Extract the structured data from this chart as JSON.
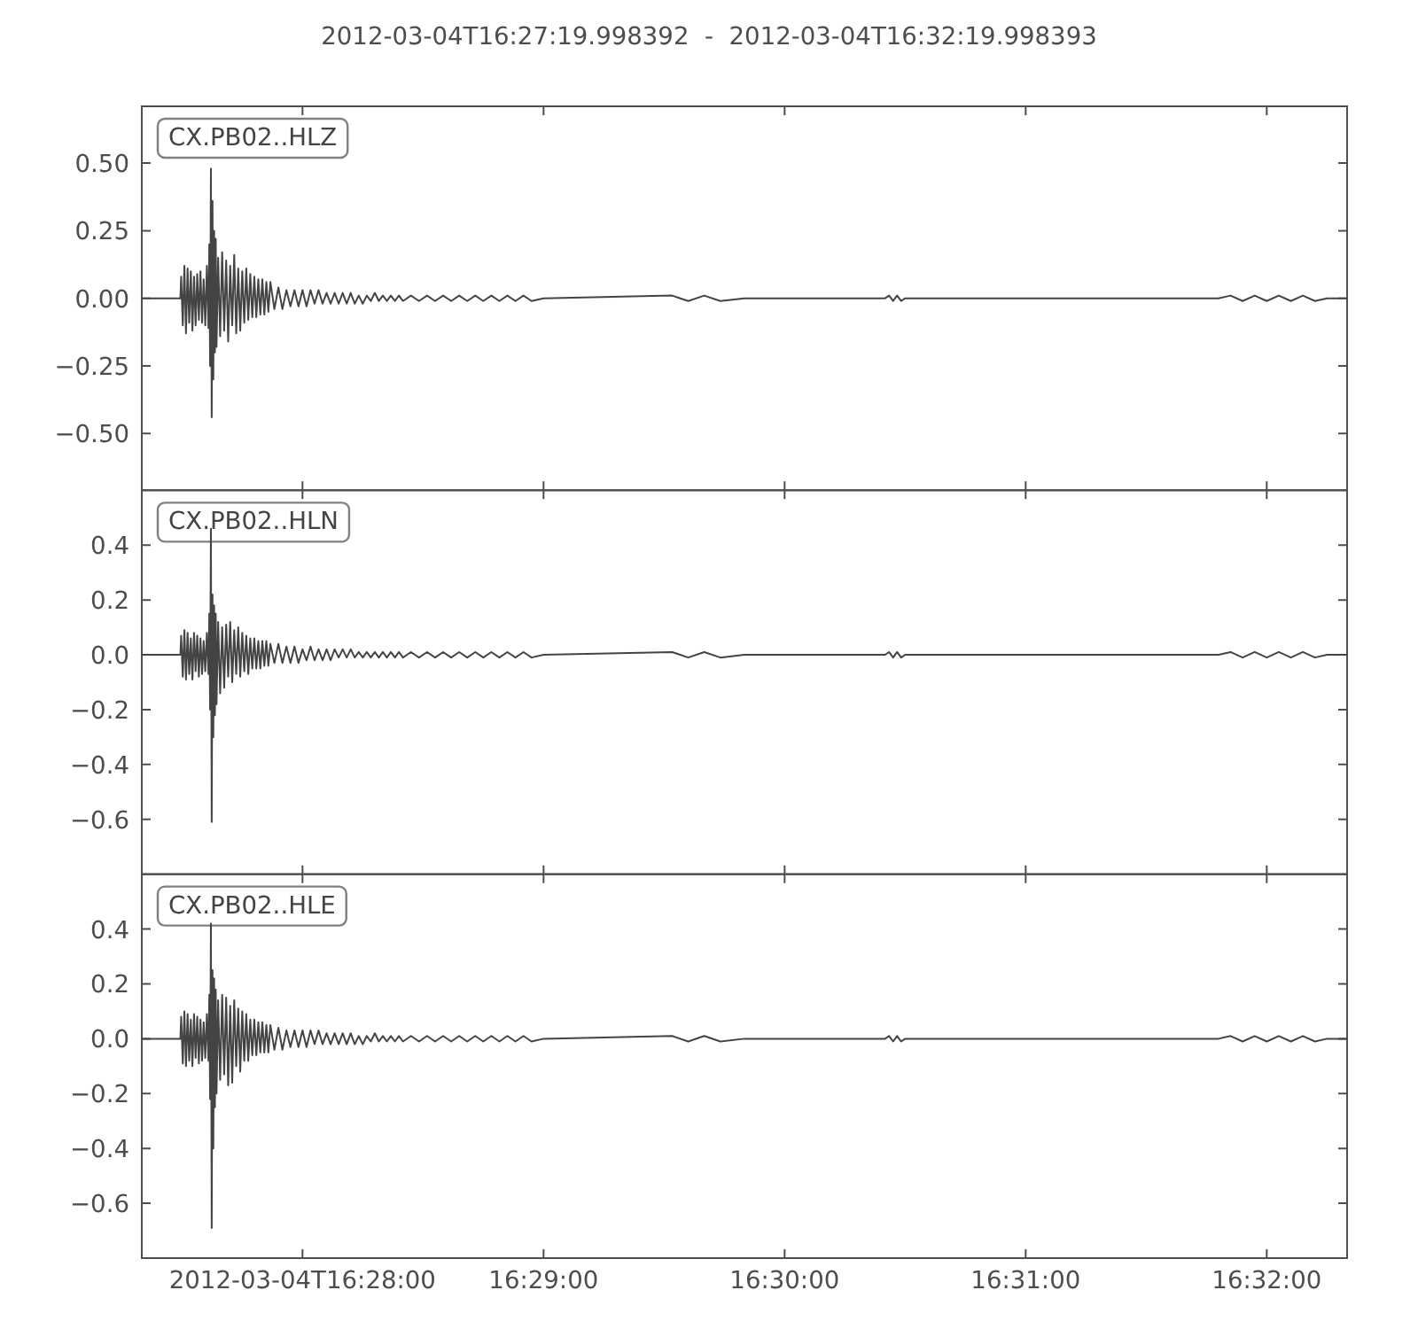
{
  "chart_data": [
    {
      "type": "line",
      "title": "2012-03-04T16:27:19.998392  -  2012-03-04T16:32:19.998393",
      "legend": "top left",
      "tick_labels": "y",
      "xlim": [
        "2012-03-04T16:27:20",
        "2012-03-04T16:32:20"
      ],
      "xticks": [
        {
          "value": "2012-03-04T16:28:00",
          "label": null
        },
        {
          "value": "2012-03-04T16:29:00",
          "label": null
        },
        {
          "value": "2012-03-04T16:30:00",
          "label": null
        },
        {
          "value": "2012-03-04T16:31:00",
          "label": null
        },
        {
          "value": "2012-03-04T16:32:00",
          "label": null
        }
      ],
      "ylim": [
        -0.71,
        0.71
      ],
      "yticks": [
        {
          "value": -0.5,
          "label": "−0.50"
        },
        {
          "value": -0.25,
          "label": "−0.25"
        },
        {
          "value": 0,
          "label": "0.00"
        },
        {
          "value": 0.25,
          "label": "0.25"
        },
        {
          "value": 0.5,
          "label": "0.50"
        }
      ],
      "x": [
        "2012-03-04T16:27:20",
        "2012-03-04T16:27:29.6",
        "2012-03-04T16:27:29.8",
        "2012-03-04T16:27:30.2",
        "2012-03-04T16:27:30.6",
        "2012-03-04T16:27:31",
        "2012-03-04T16:27:31.4",
        "2012-03-04T16:27:31.8",
        "2012-03-04T16:27:32.2",
        "2012-03-04T16:27:32.6",
        "2012-03-04T16:27:33",
        "2012-03-04T16:27:33.4",
        "2012-03-04T16:27:33.8",
        "2012-03-04T16:27:34.2",
        "2012-03-04T16:27:34.6",
        "2012-03-04T16:27:35",
        "2012-03-04T16:27:35.4",
        "2012-03-04T16:27:35.8",
        "2012-03-04T16:27:36.2",
        "2012-03-04T16:27:36.6",
        "2012-03-04T16:27:36.8",
        "2012-03-04T16:27:37",
        "2012-03-04T16:27:37.2",
        "2012-03-04T16:27:37.4",
        "2012-03-04T16:27:37.6",
        "2012-03-04T16:27:37.8",
        "2012-03-04T16:27:38",
        "2012-03-04T16:27:38.2",
        "2012-03-04T16:27:38.4",
        "2012-03-04T16:27:38.6",
        "2012-03-04T16:27:39",
        "2012-03-04T16:27:39.5",
        "2012-03-04T16:27:40",
        "2012-03-04T16:27:40.5",
        "2012-03-04T16:27:41",
        "2012-03-04T16:27:41.5",
        "2012-03-04T16:27:42",
        "2012-03-04T16:27:42.5",
        "2012-03-04T16:27:43",
        "2012-03-04T16:27:43.5",
        "2012-03-04T16:27:44",
        "2012-03-04T16:27:44.5",
        "2012-03-04T16:27:45",
        "2012-03-04T16:27:45.5",
        "2012-03-04T16:27:46",
        "2012-03-04T16:27:46.5",
        "2012-03-04T16:27:47",
        "2012-03-04T16:27:47.5",
        "2012-03-04T16:27:48",
        "2012-03-04T16:27:48.5",
        "2012-03-04T16:27:49",
        "2012-03-04T16:27:49.5",
        "2012-03-04T16:27:50",
        "2012-03-04T16:27:50.5",
        "2012-03-04T16:27:51",
        "2012-03-04T16:27:51.5",
        "2012-03-04T16:27:52",
        "2012-03-04T16:27:53",
        "2012-03-04T16:27:54",
        "2012-03-04T16:27:55",
        "2012-03-04T16:27:56",
        "2012-03-04T16:27:57",
        "2012-03-04T16:27:58",
        "2012-03-04T16:27:59",
        "2012-03-04T16:28:00",
        "2012-03-04T16:28:01",
        "2012-03-04T16:28:02",
        "2012-03-04T16:28:03",
        "2012-03-04T16:28:04",
        "2012-03-04T16:28:05",
        "2012-03-04T16:28:06",
        "2012-03-04T16:28:07",
        "2012-03-04T16:28:08",
        "2012-03-04T16:28:09",
        "2012-03-04T16:28:10",
        "2012-03-04T16:28:11",
        "2012-03-04T16:28:12",
        "2012-03-04T16:28:13",
        "2012-03-04T16:28:14",
        "2012-03-04T16:28:15",
        "2012-03-04T16:28:16",
        "2012-03-04T16:28:17",
        "2012-03-04T16:28:18",
        "2012-03-04T16:28:19",
        "2012-03-04T16:28:20",
        "2012-03-04T16:28:21",
        "2012-03-04T16:28:22",
        "2012-03-04T16:28:23",
        "2012-03-04T16:28:24",
        "2012-03-04T16:28:25",
        "2012-03-04T16:28:27",
        "2012-03-04T16:28:29",
        "2012-03-04T16:28:31",
        "2012-03-04T16:28:33",
        "2012-03-04T16:28:35",
        "2012-03-04T16:28:37",
        "2012-03-04T16:28:39",
        "2012-03-04T16:28:41",
        "2012-03-04T16:28:43",
        "2012-03-04T16:28:45",
        "2012-03-04T16:28:47",
        "2012-03-04T16:28:49",
        "2012-03-04T16:28:51",
        "2012-03-04T16:28:53",
        "2012-03-04T16:28:55",
        "2012-03-04T16:28:57",
        "2012-03-04T16:29:00",
        "2012-03-04T16:29:32",
        "2012-03-04T16:29:36",
        "2012-03-04T16:29:40",
        "2012-03-04T16:29:44",
        "2012-03-04T16:29:50",
        "2012-03-04T16:30:25",
        "2012-03-04T16:30:26",
        "2012-03-04T16:30:27",
        "2012-03-04T16:30:28",
        "2012-03-04T16:30:29",
        "2012-03-04T16:30:30",
        "2012-03-04T16:31:48",
        "2012-03-04T16:31:51",
        "2012-03-04T16:31:54",
        "2012-03-04T16:31:57",
        "2012-03-04T16:32:00",
        "2012-03-04T16:32:03",
        "2012-03-04T16:32:06",
        "2012-03-04T16:32:09",
        "2012-03-04T16:32:12",
        "2012-03-04T16:32:15",
        "2012-03-04T16:32:20"
      ],
      "series": [
        {
          "name": "CX.PB02..HLZ",
          "color": "#444444",
          "values": [
            0,
            0,
            0.08,
            -0.1,
            0.12,
            -0.13,
            0.11,
            -0.09,
            0.1,
            -0.12,
            0.08,
            -0.1,
            0.09,
            -0.08,
            0.1,
            -0.09,
            0.07,
            -0.1,
            0.12,
            -0.11,
            0.2,
            -0.25,
            0.48,
            -0.44,
            0.36,
            -0.3,
            0.25,
            -0.2,
            0.22,
            -0.18,
            0.15,
            -0.14,
            0.17,
            -0.12,
            0.14,
            -0.16,
            0.12,
            -0.1,
            0.16,
            -0.13,
            0.11,
            -0.12,
            0.1,
            -0.09,
            0.11,
            -0.08,
            0.09,
            -0.07,
            0.08,
            -0.07,
            0.07,
            -0.06,
            0.07,
            -0.06,
            0.06,
            -0.05,
            0.06,
            -0.04,
            0.04,
            -0.04,
            0.03,
            -0.03,
            0.03,
            -0.03,
            0.03,
            -0.03,
            0.03,
            -0.02,
            0.03,
            -0.02,
            0.02,
            -0.02,
            0.02,
            -0.02,
            0.02,
            -0.02,
            0.02,
            -0.02,
            0.01,
            -0.02,
            0.01,
            -0.01,
            0.02,
            -0.01,
            0.01,
            -0.01,
            0.01,
            -0.01,
            0.01,
            -0.01,
            0.01,
            -0.01,
            0.01,
            -0.01,
            0.01,
            -0.01,
            0.01,
            -0.01,
            0.01,
            -0.01,
            0.01,
            -0.01,
            0.01,
            -0.01,
            0.01,
            -0.01,
            0,
            0.01,
            -0.01,
            0.01,
            -0.01,
            0,
            0,
            0.01,
            -0.01,
            0.01,
            -0.01,
            0,
            0,
            0.01,
            -0.01,
            0.01,
            -0.01,
            0.01,
            -0.01,
            0.01,
            -0.01,
            0,
            0
          ]
        }
      ]
    },
    {
      "type": "line",
      "legend": "top left",
      "tick_labels": "y",
      "xlim": [
        "2012-03-04T16:27:20",
        "2012-03-04T16:32:20"
      ],
      "xticks": [
        {
          "value": "2012-03-04T16:28:00",
          "label": null
        },
        {
          "value": "2012-03-04T16:29:00",
          "label": null
        },
        {
          "value": "2012-03-04T16:30:00",
          "label": null
        },
        {
          "value": "2012-03-04T16:31:00",
          "label": null
        },
        {
          "value": "2012-03-04T16:32:00",
          "label": null
        }
      ],
      "ylim": [
        -0.8,
        0.6
      ],
      "yticks": [
        {
          "value": -0.6,
          "label": "−0.6"
        },
        {
          "value": -0.4,
          "label": "−0.4"
        },
        {
          "value": -0.2,
          "label": "−0.2"
        },
        {
          "value": 0,
          "label": "0.0"
        },
        {
          "value": 0.2,
          "label": "0.2"
        },
        {
          "value": 0.4,
          "label": "0.4"
        }
      ],
      "x": [
        "2012-03-04T16:27:20",
        "2012-03-04T16:27:29.6",
        "2012-03-04T16:27:29.8",
        "2012-03-04T16:27:30.2",
        "2012-03-04T16:27:30.6",
        "2012-03-04T16:27:31",
        "2012-03-04T16:27:31.4",
        "2012-03-04T16:27:31.8",
        "2012-03-04T16:27:32.2",
        "2012-03-04T16:27:32.6",
        "2012-03-04T16:27:33",
        "2012-03-04T16:27:33.4",
        "2012-03-04T16:27:33.8",
        "2012-03-04T16:27:34.2",
        "2012-03-04T16:27:34.6",
        "2012-03-04T16:27:35",
        "2012-03-04T16:27:35.4",
        "2012-03-04T16:27:35.8",
        "2012-03-04T16:27:36.2",
        "2012-03-04T16:27:36.6",
        "2012-03-04T16:27:36.8",
        "2012-03-04T16:27:37",
        "2012-03-04T16:27:37.2",
        "2012-03-04T16:27:37.4",
        "2012-03-04T16:27:37.6",
        "2012-03-04T16:27:37.8",
        "2012-03-04T16:27:38",
        "2012-03-04T16:27:38.2",
        "2012-03-04T16:27:38.4",
        "2012-03-04T16:27:38.6",
        "2012-03-04T16:27:39",
        "2012-03-04T16:27:39.5",
        "2012-03-04T16:27:40",
        "2012-03-04T16:27:40.5",
        "2012-03-04T16:27:41",
        "2012-03-04T16:27:41.5",
        "2012-03-04T16:27:42",
        "2012-03-04T16:27:42.5",
        "2012-03-04T16:27:43",
        "2012-03-04T16:27:43.5",
        "2012-03-04T16:27:44",
        "2012-03-04T16:27:44.5",
        "2012-03-04T16:27:45",
        "2012-03-04T16:27:45.5",
        "2012-03-04T16:27:46",
        "2012-03-04T16:27:46.5",
        "2012-03-04T16:27:47",
        "2012-03-04T16:27:47.5",
        "2012-03-04T16:27:48",
        "2012-03-04T16:27:48.5",
        "2012-03-04T16:27:49",
        "2012-03-04T16:27:49.5",
        "2012-03-04T16:27:50",
        "2012-03-04T16:27:50.5",
        "2012-03-04T16:27:51",
        "2012-03-04T16:27:51.5",
        "2012-03-04T16:27:52",
        "2012-03-04T16:27:53",
        "2012-03-04T16:27:54",
        "2012-03-04T16:27:55",
        "2012-03-04T16:27:56",
        "2012-03-04T16:27:57",
        "2012-03-04T16:27:58",
        "2012-03-04T16:27:59",
        "2012-03-04T16:28:00",
        "2012-03-04T16:28:01",
        "2012-03-04T16:28:02",
        "2012-03-04T16:28:03",
        "2012-03-04T16:28:04",
        "2012-03-04T16:28:05",
        "2012-03-04T16:28:06",
        "2012-03-04T16:28:07",
        "2012-03-04T16:28:08",
        "2012-03-04T16:28:09",
        "2012-03-04T16:28:10",
        "2012-03-04T16:28:11",
        "2012-03-04T16:28:12",
        "2012-03-04T16:28:13",
        "2012-03-04T16:28:14",
        "2012-03-04T16:28:15",
        "2012-03-04T16:28:16",
        "2012-03-04T16:28:17",
        "2012-03-04T16:28:18",
        "2012-03-04T16:28:19",
        "2012-03-04T16:28:20",
        "2012-03-04T16:28:21",
        "2012-03-04T16:28:22",
        "2012-03-04T16:28:23",
        "2012-03-04T16:28:24",
        "2012-03-04T16:28:25",
        "2012-03-04T16:28:27",
        "2012-03-04T16:28:29",
        "2012-03-04T16:28:31",
        "2012-03-04T16:28:33",
        "2012-03-04T16:28:35",
        "2012-03-04T16:28:37",
        "2012-03-04T16:28:39",
        "2012-03-04T16:28:41",
        "2012-03-04T16:28:43",
        "2012-03-04T16:28:45",
        "2012-03-04T16:28:47",
        "2012-03-04T16:28:49",
        "2012-03-04T16:28:51",
        "2012-03-04T16:28:53",
        "2012-03-04T16:28:55",
        "2012-03-04T16:28:57",
        "2012-03-04T16:29:00",
        "2012-03-04T16:29:32",
        "2012-03-04T16:29:36",
        "2012-03-04T16:29:40",
        "2012-03-04T16:29:44",
        "2012-03-04T16:29:50",
        "2012-03-04T16:30:25",
        "2012-03-04T16:30:26",
        "2012-03-04T16:30:27",
        "2012-03-04T16:30:28",
        "2012-03-04T16:30:29",
        "2012-03-04T16:30:30",
        "2012-03-04T16:31:48",
        "2012-03-04T16:31:51",
        "2012-03-04T16:31:54",
        "2012-03-04T16:31:57",
        "2012-03-04T16:32:00",
        "2012-03-04T16:32:03",
        "2012-03-04T16:32:06",
        "2012-03-04T16:32:09",
        "2012-03-04T16:32:12",
        "2012-03-04T16:32:15",
        "2012-03-04T16:32:20"
      ],
      "series": [
        {
          "name": "CX.PB02..HLN",
          "color": "#444444",
          "values": [
            0,
            0,
            0.07,
            -0.08,
            0.09,
            -0.09,
            0.08,
            -0.07,
            0.06,
            -0.09,
            0.08,
            -0.06,
            0.07,
            -0.08,
            0.06,
            -0.07,
            0.05,
            -0.06,
            0.08,
            -0.07,
            0.15,
            -0.2,
            0.46,
            -0.61,
            0.22,
            -0.3,
            0.18,
            -0.22,
            0.15,
            -0.18,
            0.12,
            -0.14,
            0.1,
            -0.12,
            0.11,
            -0.08,
            0.12,
            -0.1,
            0.09,
            -0.07,
            0.1,
            -0.08,
            0.08,
            -0.06,
            0.07,
            -0.07,
            0.06,
            -0.05,
            0.06,
            -0.05,
            0.05,
            -0.05,
            0.05,
            -0.04,
            0.05,
            -0.04,
            0.04,
            -0.03,
            0.04,
            -0.03,
            0.03,
            -0.03,
            0.03,
            -0.03,
            0.02,
            -0.02,
            0.03,
            -0.02,
            0.02,
            -0.02,
            0.02,
            -0.02,
            0.02,
            -0.01,
            0.02,
            -0.01,
            0.02,
            -0.01,
            0.01,
            -0.01,
            0.01,
            -0.01,
            0.01,
            -0.01,
            0.01,
            -0.01,
            0.01,
            -0.01,
            0.01,
            -0.01,
            0.01,
            -0.01,
            0.01,
            -0.01,
            0.01,
            -0.01,
            0.01,
            -0.01,
            0.01,
            -0.01,
            0.01,
            -0.01,
            0.01,
            -0.01,
            0.01,
            -0.01,
            0,
            0.01,
            -0.01,
            0.01,
            -0.01,
            0,
            0,
            0.01,
            -0.01,
            0.01,
            -0.01,
            0,
            0,
            0.01,
            -0.01,
            0.01,
            -0.01,
            0.01,
            -0.01,
            0.01,
            -0.01,
            0,
            0
          ]
        }
      ]
    },
    {
      "type": "line",
      "legend": "top left",
      "xlim": [
        "2012-03-04T16:27:20",
        "2012-03-04T16:32:20"
      ],
      "xticks": [
        "2012-03-04T16:28:00",
        {
          "value": "2012-03-04T16:29:00",
          "label": "16:29:00"
        },
        {
          "value": "2012-03-04T16:30:00",
          "label": "16:30:00"
        },
        {
          "value": "2012-03-04T16:31:00",
          "label": "16:31:00"
        },
        {
          "value": "2012-03-04T16:32:00",
          "label": "16:32:00"
        }
      ],
      "ylim": [
        -0.8,
        0.6
      ],
      "yticks": [
        {
          "value": -0.6,
          "label": "−0.6"
        },
        {
          "value": -0.4,
          "label": "−0.4"
        },
        {
          "value": -0.2,
          "label": "−0.2"
        },
        {
          "value": 0,
          "label": "0.0"
        },
        {
          "value": 0.2,
          "label": "0.2"
        },
        {
          "value": 0.4,
          "label": "0.4"
        }
      ],
      "x": [
        "2012-03-04T16:27:20",
        "2012-03-04T16:27:29.6",
        "2012-03-04T16:27:29.8",
        "2012-03-04T16:27:30.2",
        "2012-03-04T16:27:30.6",
        "2012-03-04T16:27:31",
        "2012-03-04T16:27:31.4",
        "2012-03-04T16:27:31.8",
        "2012-03-04T16:27:32.2",
        "2012-03-04T16:27:32.6",
        "2012-03-04T16:27:33",
        "2012-03-04T16:27:33.4",
        "2012-03-04T16:27:33.8",
        "2012-03-04T16:27:34.2",
        "2012-03-04T16:27:34.6",
        "2012-03-04T16:27:35",
        "2012-03-04T16:27:35.4",
        "2012-03-04T16:27:35.8",
        "2012-03-04T16:27:36.2",
        "2012-03-04T16:27:36.6",
        "2012-03-04T16:27:36.8",
        "2012-03-04T16:27:37",
        "2012-03-04T16:27:37.2",
        "2012-03-04T16:27:37.4",
        "2012-03-04T16:27:37.6",
        "2012-03-04T16:27:37.8",
        "2012-03-04T16:27:38",
        "2012-03-04T16:27:38.2",
        "2012-03-04T16:27:38.4",
        "2012-03-04T16:27:38.6",
        "2012-03-04T16:27:39",
        "2012-03-04T16:27:39.5",
        "2012-03-04T16:27:40",
        "2012-03-04T16:27:40.5",
        "2012-03-04T16:27:41",
        "2012-03-04T16:27:41.5",
        "2012-03-04T16:27:42",
        "2012-03-04T16:27:42.5",
        "2012-03-04T16:27:43",
        "2012-03-04T16:27:43.5",
        "2012-03-04T16:27:44",
        "2012-03-04T16:27:44.5",
        "2012-03-04T16:27:45",
        "2012-03-04T16:27:45.5",
        "2012-03-04T16:27:46",
        "2012-03-04T16:27:46.5",
        "2012-03-04T16:27:47",
        "2012-03-04T16:27:47.5",
        "2012-03-04T16:27:48",
        "2012-03-04T16:27:48.5",
        "2012-03-04T16:27:49",
        "2012-03-04T16:27:49.5",
        "2012-03-04T16:27:50",
        "2012-03-04T16:27:50.5",
        "2012-03-04T16:27:51",
        "2012-03-04T16:27:51.5",
        "2012-03-04T16:27:52",
        "2012-03-04T16:27:53",
        "2012-03-04T16:27:54",
        "2012-03-04T16:27:55",
        "2012-03-04T16:27:56",
        "2012-03-04T16:27:57",
        "2012-03-04T16:27:58",
        "2012-03-04T16:27:59",
        "2012-03-04T16:28:00",
        "2012-03-04T16:28:01",
        "2012-03-04T16:28:02",
        "2012-03-04T16:28:03",
        "2012-03-04T16:28:04",
        "2012-03-04T16:28:05",
        "2012-03-04T16:28:06",
        "2012-03-04T16:28:07",
        "2012-03-04T16:28:08",
        "2012-03-04T16:28:09",
        "2012-03-04T16:28:10",
        "2012-03-04T16:28:11",
        "2012-03-04T16:28:12",
        "2012-03-04T16:28:13",
        "2012-03-04T16:28:14",
        "2012-03-04T16:28:15",
        "2012-03-04T16:28:16",
        "2012-03-04T16:28:17",
        "2012-03-04T16:28:18",
        "2012-03-04T16:28:19",
        "2012-03-04T16:28:20",
        "2012-03-04T16:28:21",
        "2012-03-04T16:28:22",
        "2012-03-04T16:28:23",
        "2012-03-04T16:28:24",
        "2012-03-04T16:28:25",
        "2012-03-04T16:28:27",
        "2012-03-04T16:28:29",
        "2012-03-04T16:28:31",
        "2012-03-04T16:28:33",
        "2012-03-04T16:28:35",
        "2012-03-04T16:28:37",
        "2012-03-04T16:28:39",
        "2012-03-04T16:28:41",
        "2012-03-04T16:28:43",
        "2012-03-04T16:28:45",
        "2012-03-04T16:28:47",
        "2012-03-04T16:28:49",
        "2012-03-04T16:28:51",
        "2012-03-04T16:28:53",
        "2012-03-04T16:28:55",
        "2012-03-04T16:28:57",
        "2012-03-04T16:29:00",
        "2012-03-04T16:29:32",
        "2012-03-04T16:29:36",
        "2012-03-04T16:29:40",
        "2012-03-04T16:29:44",
        "2012-03-04T16:29:50",
        "2012-03-04T16:30:25",
        "2012-03-04T16:30:26",
        "2012-03-04T16:30:27",
        "2012-03-04T16:30:28",
        "2012-03-04T16:30:29",
        "2012-03-04T16:30:30",
        "2012-03-04T16:31:48",
        "2012-03-04T16:31:51",
        "2012-03-04T16:31:54",
        "2012-03-04T16:31:57",
        "2012-03-04T16:32:00",
        "2012-03-04T16:32:03",
        "2012-03-04T16:32:06",
        "2012-03-04T16:32:09",
        "2012-03-04T16:32:12",
        "2012-03-04T16:32:15",
        "2012-03-04T16:32:20"
      ],
      "series": [
        {
          "name": "CX.PB02..HLE",
          "color": "#444444",
          "values": [
            0,
            0,
            0.08,
            -0.09,
            0.1,
            -0.1,
            0.09,
            -0.08,
            0.07,
            -0.1,
            0.09,
            -0.07,
            0.08,
            -0.09,
            0.07,
            -0.08,
            0.06,
            -0.07,
            0.09,
            -0.08,
            0.16,
            -0.22,
            0.42,
            -0.69,
            0.25,
            -0.4,
            0.22,
            -0.25,
            0.18,
            -0.2,
            0.14,
            -0.15,
            0.16,
            -0.13,
            0.15,
            -0.17,
            0.12,
            -0.16,
            0.14,
            -0.1,
            0.11,
            -0.12,
            0.1,
            -0.08,
            0.09,
            -0.08,
            0.07,
            -0.06,
            0.07,
            -0.06,
            0.06,
            -0.05,
            0.06,
            -0.05,
            0.05,
            -0.05,
            0.05,
            -0.04,
            0.04,
            -0.04,
            0.03,
            -0.03,
            0.03,
            -0.03,
            0.03,
            -0.03,
            0.03,
            -0.02,
            0.03,
            -0.02,
            0.02,
            -0.02,
            0.02,
            -0.02,
            0.02,
            -0.02,
            0.02,
            -0.02,
            0.01,
            -0.02,
            0.01,
            -0.01,
            0.02,
            -0.01,
            0.01,
            -0.01,
            0.01,
            -0.01,
            0.01,
            -0.01,
            0.01,
            -0.01,
            0.01,
            -0.01,
            0.01,
            -0.01,
            0.01,
            -0.01,
            0.01,
            -0.01,
            0.01,
            -0.01,
            0.01,
            -0.01,
            0.01,
            -0.01,
            0,
            0.01,
            -0.01,
            0.01,
            -0.01,
            0,
            0,
            0.01,
            -0.01,
            0.01,
            -0.01,
            0,
            0,
            0.01,
            -0.01,
            0.01,
            -0.01,
            0.01,
            -0.01,
            0.01,
            -0.01,
            0,
            0
          ]
        }
      ]
    }
  ]
}
